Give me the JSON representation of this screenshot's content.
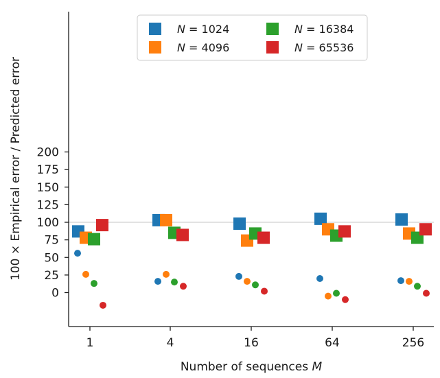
{
  "chart_data": {
    "type": "scatter",
    "title": "",
    "xlabel": "Number of sequences M",
    "xlabel_parts": {
      "text": "Number of sequences ",
      "var": "M"
    },
    "ylabel": "100 × Empirical error / Predicted error",
    "categories": [
      "1",
      "4",
      "16",
      "64",
      "256"
    ],
    "ylim": [
      -25,
      200
    ],
    "yticks": [
      0,
      25,
      50,
      75,
      100,
      125,
      150,
      175,
      200
    ],
    "reference_line": 100,
    "legend_position": "top-center",
    "series": [
      {
        "name": "N = 1024",
        "label_var": "N",
        "label_value": "1024",
        "color": "#1f77b4",
        "squares": [
          87,
          103,
          98,
          105,
          104
        ],
        "dots": [
          56,
          16,
          23,
          20,
          17
        ]
      },
      {
        "name": "N = 4096",
        "label_var": "N",
        "label_value": "4096",
        "color": "#ff7f0e",
        "squares": [
          78,
          103,
          74,
          90,
          84
        ],
        "dots": [
          26,
          26,
          16,
          -5,
          16
        ]
      },
      {
        "name": "N = 16384",
        "label_var": "N",
        "label_value": "16384",
        "color": "#2ca02c",
        "squares": [
          76,
          85,
          84,
          81,
          78
        ],
        "dots": [
          13,
          15,
          11,
          -1,
          9
        ]
      },
      {
        "name": "N = 65536",
        "label_var": "N",
        "label_value": "65536",
        "color": "#d62728",
        "squares": [
          96,
          82,
          78,
          87,
          90
        ],
        "dots": [
          -18,
          9,
          2,
          -10,
          -1
        ]
      }
    ]
  }
}
